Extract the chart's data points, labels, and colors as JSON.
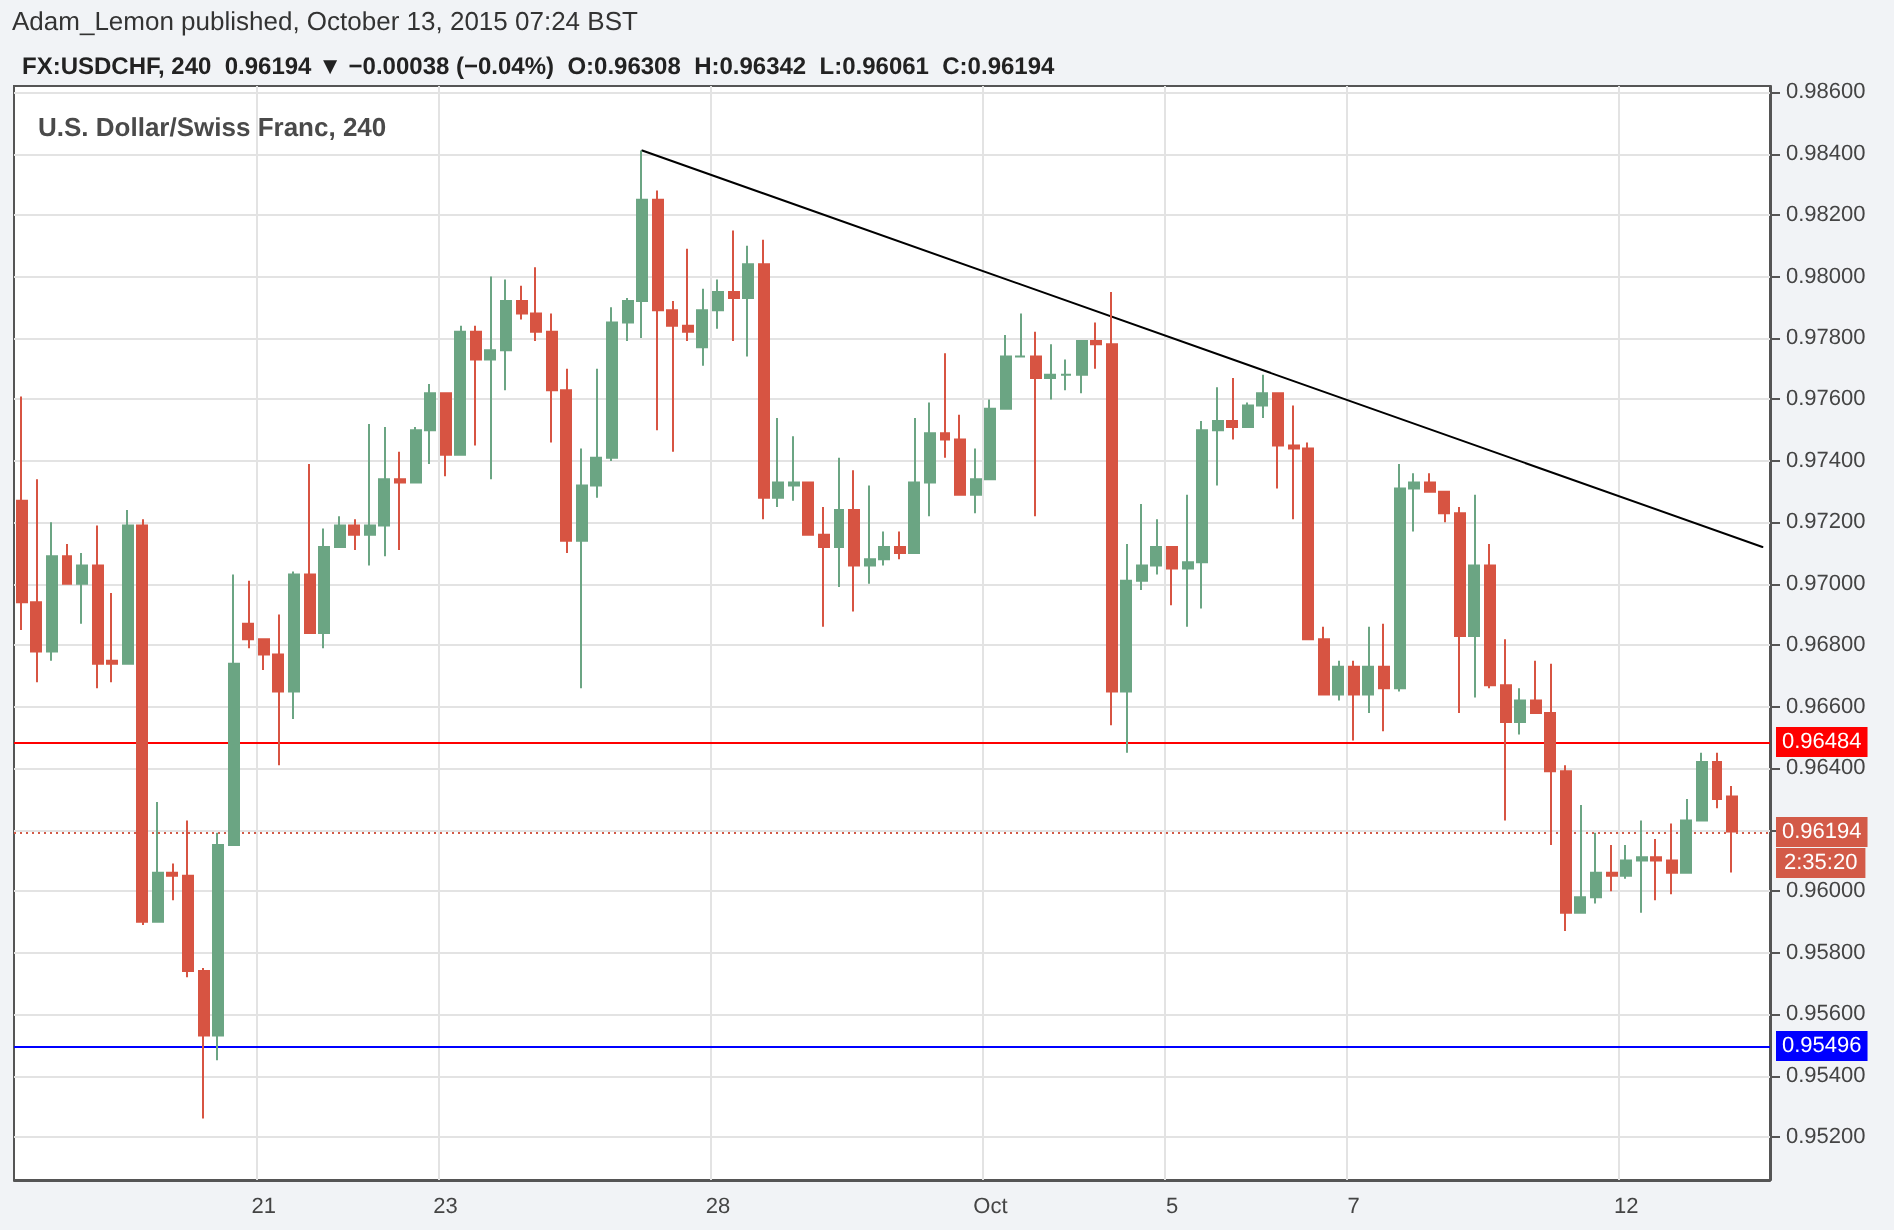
{
  "chart_data": {
    "type": "candlestick",
    "title": "U.S. Dollar/Swiss Franc, 240",
    "subtitle": "FX:USDCHF, 240  0.96194 ▼ −0.00038 (−0.04%)  O:0.96308  H:0.96342  L:0.96061  C:0.96194",
    "annotations": [
      "Adam_Lemon published, October 13, 2015 07:24 BST",
      "2:35:20"
    ],
    "categories": [
      null,
      null,
      null,
      null,
      null,
      null,
      null,
      null,
      null,
      null,
      null,
      null,
      null,
      null,
      null,
      null,
      "21",
      null,
      null,
      null,
      null,
      null,
      null,
      null,
      null,
      null,
      null,
      null,
      "23",
      null,
      null,
      null,
      null,
      null,
      null,
      null,
      null,
      null,
      null,
      null,
      null,
      null,
      null,
      null,
      null,
      null,
      "28",
      null,
      null,
      null,
      null,
      null,
      null,
      null,
      null,
      null,
      null,
      null,
      null,
      null,
      null,
      null,
      null,
      null,
      "Oct",
      null,
      null,
      null,
      null,
      null,
      null,
      null,
      null,
      null,
      null,
      null,
      "5",
      null,
      null,
      null,
      null,
      null,
      null,
      null,
      null,
      null,
      null,
      null,
      "7",
      null,
      null,
      null,
      null,
      null,
      null,
      null,
      null,
      null,
      null,
      null,
      null,
      null,
      null,
      null,
      null,
      null,
      "12",
      null,
      null,
      null,
      null,
      null,
      null,
      null,
      null,
      null
    ],
    "ohlc": [
      [
        0.9727,
        0.9761,
        0.9685,
        0.9694
      ],
      [
        0.9694,
        0.9734,
        0.9668,
        0.9678
      ],
      [
        0.9678,
        0.972,
        0.9675,
        0.9709
      ],
      [
        0.9709,
        0.9713,
        0.97,
        0.97
      ],
      [
        0.97,
        0.971,
        0.9687,
        0.9706
      ],
      [
        0.9706,
        0.9719,
        0.9666,
        0.9674
      ],
      [
        0.9675,
        0.9697,
        0.9668,
        0.9674
      ],
      [
        0.9674,
        0.9724,
        0.9674,
        0.9719
      ],
      [
        0.9719,
        0.9721,
        0.9589,
        0.959
      ],
      [
        0.959,
        0.9629,
        0.959,
        0.9606
      ],
      [
        0.9606,
        0.9609,
        0.9597,
        0.9605
      ],
      [
        0.9605,
        0.9623,
        0.9572,
        0.9574
      ],
      [
        0.9574,
        0.9575,
        0.9526,
        0.9553
      ],
      [
        0.9553,
        0.9619,
        0.9545,
        0.9615
      ],
      [
        0.9615,
        0.9703,
        0.9615,
        0.9674
      ],
      [
        0.9687,
        0.9701,
        0.9679,
        0.9682
      ],
      [
        0.9682,
        0.9682,
        0.9672,
        0.9677
      ],
      [
        0.9677,
        0.969,
        0.9641,
        0.9665
      ],
      [
        0.9665,
        0.9704,
        0.9656,
        0.9703
      ],
      [
        0.9703,
        0.9739,
        0.9684,
        0.9684
      ],
      [
        0.9684,
        0.9718,
        0.9679,
        0.9712
      ],
      [
        0.9712,
        0.9722,
        0.9712,
        0.9719
      ],
      [
        0.9719,
        0.9721,
        0.9711,
        0.9716
      ],
      [
        0.9716,
        0.9752,
        0.9706,
        0.9719
      ],
      [
        0.9719,
        0.9751,
        0.9709,
        0.9734
      ],
      [
        0.9734,
        0.9743,
        0.9711,
        0.9733
      ],
      [
        0.9733,
        0.9751,
        0.9733,
        0.975
      ],
      [
        0.975,
        0.9765,
        0.9739,
        0.9762
      ],
      [
        0.9762,
        0.9762,
        0.9735,
        0.9742
      ],
      [
        0.9742,
        0.9784,
        0.9742,
        0.9782
      ],
      [
        0.9782,
        0.9784,
        0.9745,
        0.9773
      ],
      [
        0.9773,
        0.98,
        0.9734,
        0.9776
      ],
      [
        0.9776,
        0.9799,
        0.9763,
        0.9792
      ],
      [
        0.9792,
        0.9797,
        0.9786,
        0.9788
      ],
      [
        0.9788,
        0.9803,
        0.9779,
        0.9782
      ],
      [
        0.9782,
        0.9788,
        0.9746,
        0.9763
      ],
      [
        0.9763,
        0.977,
        0.971,
        0.9714
      ],
      [
        0.9714,
        0.9744,
        0.9666,
        0.9732
      ],
      [
        0.9732,
        0.977,
        0.9728,
        0.9741
      ],
      [
        0.9741,
        0.979,
        0.974,
        0.9785
      ],
      [
        0.9785,
        0.9793,
        0.9779,
        0.9792
      ],
      [
        0.9792,
        0.9841,
        0.978,
        0.9825
      ],
      [
        0.9825,
        0.9828,
        0.975,
        0.9789
      ],
      [
        0.9789,
        0.9792,
        0.9743,
        0.9784
      ],
      [
        0.9784,
        0.9809,
        0.9779,
        0.9782
      ],
      [
        0.9777,
        0.9796,
        0.9771,
        0.9789
      ],
      [
        0.9789,
        0.9799,
        0.9783,
        0.9795
      ],
      [
        0.9795,
        0.9815,
        0.9779,
        0.9793
      ],
      [
        0.9793,
        0.981,
        0.9774,
        0.9804
      ],
      [
        0.9804,
        0.9812,
        0.9721,
        0.9728
      ],
      [
        0.9728,
        0.9754,
        0.9725,
        0.9733
      ],
      [
        0.9732,
        0.9748,
        0.9727,
        0.9733
      ],
      [
        0.9733,
        0.9733,
        0.9716,
        0.9716
      ],
      [
        0.9716,
        0.9725,
        0.9686,
        0.9712
      ],
      [
        0.9712,
        0.9741,
        0.9699,
        0.9724
      ],
      [
        0.9724,
        0.9737,
        0.9691,
        0.9706
      ],
      [
        0.9706,
        0.9732,
        0.97,
        0.9708
      ],
      [
        0.9708,
        0.9717,
        0.9706,
        0.9712
      ],
      [
        0.9712,
        0.9717,
        0.9708,
        0.971
      ],
      [
        0.971,
        0.9754,
        0.971,
        0.9733
      ],
      [
        0.9733,
        0.9759,
        0.9722,
        0.9749
      ],
      [
        0.9749,
        0.9775,
        0.9741,
        0.9747
      ],
      [
        0.9747,
        0.9755,
        0.9729,
        0.9729
      ],
      [
        0.9729,
        0.9744,
        0.9723,
        0.9734
      ],
      [
        0.9734,
        0.976,
        0.9734,
        0.9757
      ],
      [
        0.9757,
        0.9781,
        0.9757,
        0.9774
      ],
      [
        0.9774,
        0.9788,
        0.9774,
        0.9774
      ],
      [
        0.9774,
        0.9782,
        0.9722,
        0.9767
      ],
      [
        0.9767,
        0.9778,
        0.976,
        0.9768
      ],
      [
        0.9768,
        0.9773,
        0.9763,
        0.9768
      ],
      [
        0.9768,
        0.9779,
        0.9762,
        0.9779
      ],
      [
        0.9779,
        0.9785,
        0.977,
        0.9778
      ],
      [
        0.9778,
        0.9795,
        0.9654,
        0.9665
      ],
      [
        0.9665,
        0.9713,
        0.9645,
        0.9701
      ],
      [
        0.9701,
        0.9726,
        0.9698,
        0.9706
      ],
      [
        0.9706,
        0.9721,
        0.9703,
        0.9712
      ],
      [
        0.9712,
        0.9712,
        0.9693,
        0.9705
      ],
      [
        0.9705,
        0.9729,
        0.9686,
        0.9707
      ],
      [
        0.9707,
        0.9753,
        0.9692,
        0.975
      ],
      [
        0.975,
        0.9764,
        0.9732,
        0.9753
      ],
      [
        0.9753,
        0.9767,
        0.9747,
        0.9751
      ],
      [
        0.9751,
        0.9759,
        0.9751,
        0.9758
      ],
      [
        0.9758,
        0.9768,
        0.9754,
        0.9762
      ],
      [
        0.9762,
        0.9762,
        0.9731,
        0.9745
      ],
      [
        0.9745,
        0.9758,
        0.9721,
        0.9744
      ],
      [
        0.9744,
        0.9746,
        0.9682,
        0.9682
      ],
      [
        0.9682,
        0.9686,
        0.9664,
        0.9664
      ],
      [
        0.9664,
        0.9675,
        0.9662,
        0.9673
      ],
      [
        0.9673,
        0.9675,
        0.9649,
        0.9664
      ],
      [
        0.9664,
        0.9686,
        0.9658,
        0.9673
      ],
      [
        0.9673,
        0.9687,
        0.9652,
        0.9666
      ],
      [
        0.9666,
        0.9739,
        0.9665,
        0.9731
      ],
      [
        0.9731,
        0.9736,
        0.9717,
        0.9733
      ],
      [
        0.9733,
        0.9736,
        0.973,
        0.973
      ],
      [
        0.973,
        0.973,
        0.972,
        0.9723
      ],
      [
        0.9723,
        0.9725,
        0.9658,
        0.9683
      ],
      [
        0.9683,
        0.9729,
        0.9663,
        0.9706
      ],
      [
        0.9706,
        0.9713,
        0.9666,
        0.9667
      ],
      [
        0.9667,
        0.9682,
        0.9623,
        0.9655
      ],
      [
        0.9655,
        0.9666,
        0.9651,
        0.9662
      ],
      [
        0.9662,
        0.9675,
        0.9658,
        0.9658
      ],
      [
        0.9658,
        0.9674,
        0.9615,
        0.9639
      ],
      [
        0.9639,
        0.9641,
        0.9587,
        0.9593
      ],
      [
        0.9593,
        0.9628,
        0.9593,
        0.9598
      ],
      [
        0.9598,
        0.9619,
        0.9596,
        0.9606
      ],
      [
        0.9606,
        0.9615,
        0.96,
        0.9605
      ],
      [
        0.9605,
        0.9615,
        0.9604,
        0.961
      ],
      [
        0.961,
        0.9623,
        0.9593,
        0.9611
      ],
      [
        0.9611,
        0.9617,
        0.9597,
        0.961
      ],
      [
        0.961,
        0.9622,
        0.9599,
        0.9606
      ],
      [
        0.9606,
        0.963,
        0.9606,
        0.9623
      ],
      [
        0.9623,
        0.9645,
        0.9623,
        0.9642
      ],
      [
        0.9642,
        0.9645,
        0.9627,
        0.963
      ],
      [
        0.96308,
        0.96342,
        0.96061,
        0.96194
      ],
      null,
      null
    ],
    "colors": [
      "#d75442",
      "#d75442",
      "#6ba583",
      "#d75442",
      "#6ba583",
      "#d75442",
      "#d75442",
      "#6ba583",
      "#d75442",
      "#6ba583",
      "#d75442",
      "#d75442",
      "#d75442",
      "#6ba583",
      "#6ba583",
      "#d75442",
      "#d75442",
      "#d75442",
      "#6ba583",
      "#d75442",
      "#6ba583",
      "#6ba583",
      "#d75442",
      "#6ba583",
      "#6ba583",
      "#d75442",
      "#6ba583",
      "#6ba583",
      "#d75442",
      "#6ba583",
      "#d75442",
      "#6ba583",
      "#6ba583",
      "#d75442",
      "#d75442",
      "#d75442",
      "#d75442",
      "#6ba583",
      "#6ba583",
      "#6ba583",
      "#6ba583",
      "#6ba583",
      "#d75442",
      "#d75442",
      "#d75442",
      "#6ba583",
      "#6ba583",
      "#d75442",
      "#6ba583",
      "#d75442",
      "#6ba583",
      "#6ba583",
      "#d75442",
      "#d75442",
      "#6ba583",
      "#d75442",
      "#6ba583",
      "#6ba583",
      "#d75442",
      "#6ba583",
      "#6ba583",
      "#d75442",
      "#d75442",
      "#6ba583",
      "#6ba583",
      "#6ba583",
      "#6ba583",
      "#d75442",
      "#6ba583",
      "#6ba583",
      "#6ba583",
      "#d75442",
      "#d75442",
      "#6ba583",
      "#6ba583",
      "#6ba583",
      "#d75442",
      "#6ba583",
      "#6ba583",
      "#6ba583",
      "#d75442",
      "#6ba583",
      "#6ba583",
      "#d75442",
      "#d75442",
      "#d75442",
      "#d75442",
      "#6ba583",
      "#d75442",
      "#6ba583",
      "#d75442",
      "#6ba583",
      "#6ba583",
      "#d75442",
      "#d75442",
      "#d75442",
      "#6ba583",
      "#d75442",
      "#d75442",
      "#6ba583",
      "#d75442",
      "#d75442",
      "#d75442",
      "#6ba583",
      "#6ba583",
      "#d75442",
      "#6ba583",
      "#6ba583",
      "#d75442",
      "#d75442",
      "#6ba583",
      "#6ba583",
      "#d75442",
      "#d75442",
      null,
      null
    ],
    "series": [
      {
        "type": "line",
        "color": "#000000",
        "values": [
          null,
          null,
          null,
          null,
          null,
          null,
          null,
          null,
          null,
          null,
          null,
          null,
          null,
          null,
          null,
          null,
          null,
          null,
          null,
          null,
          null,
          null,
          null,
          null,
          null,
          null,
          null,
          null,
          null,
          null,
          null,
          null,
          null,
          null,
          null,
          null,
          null,
          null,
          null,
          null,
          null,
          0.9841,
          null,
          null,
          null,
          null,
          null,
          null,
          null,
          null,
          null,
          null,
          null,
          null,
          null,
          null,
          null,
          null,
          null,
          null,
          null,
          null,
          null,
          null,
          null,
          null,
          null,
          null,
          null,
          null,
          null,
          null,
          null,
          null,
          null,
          null,
          null,
          null,
          null,
          null,
          null,
          null,
          null,
          null,
          null,
          null,
          null,
          null,
          null,
          null,
          null,
          null,
          null,
          null,
          null,
          null,
          null,
          null,
          null,
          null,
          null,
          null,
          null,
          null,
          null,
          null,
          null,
          null,
          null,
          null,
          null,
          null,
          null,
          null,
          null,
          0.9712
        ]
      }
    ],
    "ylim": [
      0.9506,
      0.9862
    ],
    "yticks": [
      {
        "value": 0.952,
        "label": "0.95200"
      },
      {
        "value": 0.954,
        "label": "0.95400"
      },
      {
        "value": 0.956,
        "label": "0.95600"
      },
      {
        "value": 0.958,
        "label": "0.95800"
      },
      {
        "value": 0.96,
        "label": "0.96000"
      },
      {
        "value": 0.962,
        "label": null
      },
      {
        "value": 0.964,
        "label": "0.96400"
      },
      {
        "value": 0.966,
        "label": "0.96600"
      },
      {
        "value": 0.968,
        "label": "0.96800"
      },
      {
        "value": 0.97,
        "label": "0.97000"
      },
      {
        "value": 0.972,
        "label": "0.97200"
      },
      {
        "value": 0.974,
        "label": "0.97400"
      },
      {
        "value": 0.976,
        "label": "0.97600"
      },
      {
        "value": 0.978,
        "label": "0.97800"
      },
      {
        "value": 0.98,
        "label": "0.98000"
      },
      {
        "value": 0.982,
        "label": "0.98200"
      },
      {
        "value": 0.984,
        "label": "0.98400"
      },
      {
        "value": 0.986,
        "label": "0.98600"
      }
    ],
    "ref_lines": [
      {
        "axis": "y",
        "value": 0.96484,
        "label": "0.96484",
        "color": "#ff0000"
      },
      {
        "axis": "y",
        "value": 0.95496,
        "label": "0.95496",
        "color": "#0000ff"
      },
      {
        "axis": "y",
        "value": 0.96194,
        "label": "0.96194",
        "color": "#d35a48",
        "line_style": "dotted"
      }
    ],
    "grid": true
  }
}
